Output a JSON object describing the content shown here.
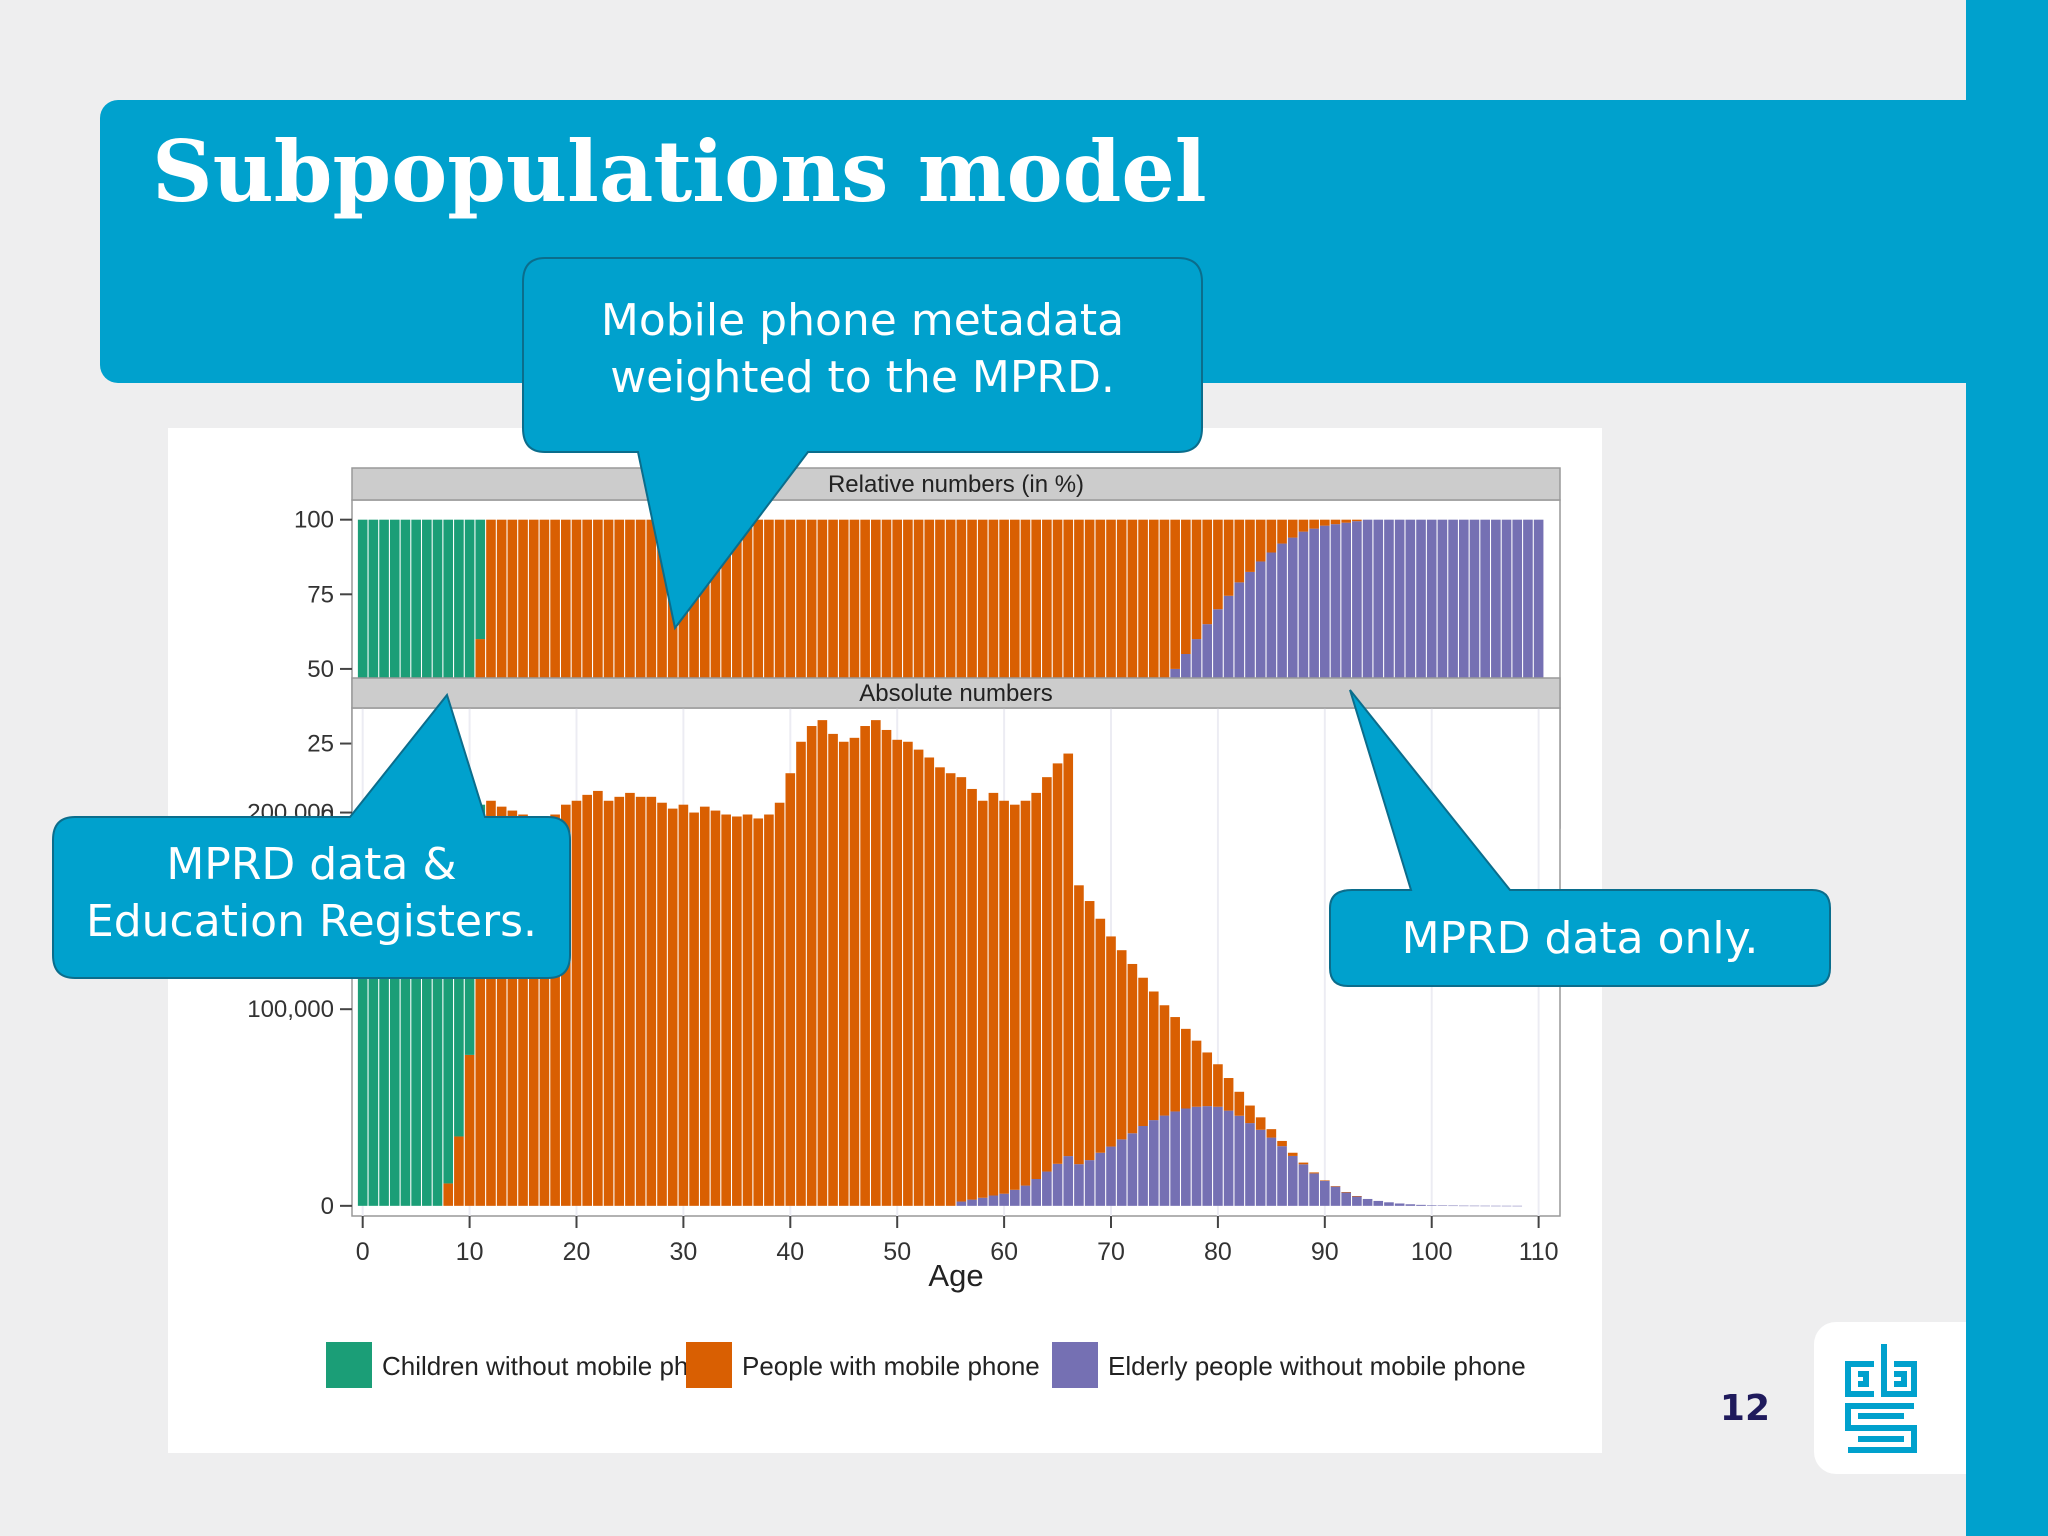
{
  "slide": {
    "title": "Subpopulations model",
    "page_number": "12",
    "colors": {
      "accent": "#00a1cd",
      "background": "#eeeeef",
      "page_number": "#1f1a5c"
    }
  },
  "callouts": {
    "metadata": "Mobile phone metadata\nweighted to the MPRD.",
    "mprd_education": "MPRD data &\nEducation Registers.",
    "mprd_only": "MPRD data only."
  },
  "logo": {
    "icon": "cbs-logo-icon",
    "text": "cbs"
  },
  "chart_data": {
    "type": "bar",
    "stacked": true,
    "xlabel": "Age",
    "x_ticks": [
      0,
      10,
      20,
      30,
      40,
      50,
      60,
      70,
      80,
      90,
      100,
      110
    ],
    "x_range": [
      -1,
      112
    ],
    "ages": [
      0,
      108
    ],
    "legend": {
      "position": "bottom",
      "entries": [
        {
          "name": "Children without mobile phone",
          "color": "#1b9e77"
        },
        {
          "name": "People with mobile phone",
          "color": "#d95f02"
        },
        {
          "name": "Elderly people without mobile phone",
          "color": "#7570b3"
        }
      ]
    },
    "panels": [
      {
        "facet_label": "Relative numbers (in %)",
        "y_ticks": [
          0,
          25,
          50,
          75,
          100
        ],
        "y_tick_labels": [
          "0",
          "25",
          "50",
          "75",
          "100"
        ],
        "ylim": [
          0,
          100
        ],
        "children_pct": [
          100,
          100,
          100,
          100,
          100,
          100,
          100,
          100,
          94,
          82,
          62,
          40,
          0
        ],
        "elderly_pct_by_age": {
          "56": 1,
          "58": 2,
          "60": 3,
          "62": 5,
          "64": 8,
          "66": 11,
          "68": 15,
          "70": 22,
          "72": 30,
          "74": 40,
          "76": 50,
          "78": 60,
          "80": 70,
          "82": 79,
          "84": 86,
          "86": 92,
          "88": 96,
          "90": 98,
          "92": 99,
          "94": 100
        },
        "max_age": 110
      },
      {
        "facet_label": "Absolute numbers",
        "y_ticks": [
          0,
          100000,
          200000
        ],
        "y_tick_labels": [
          "0",
          "100,000",
          "200,000"
        ],
        "ylim": [
          0,
          248000
        ],
        "totals": [
          177000,
          180000,
          184000,
          186000,
          186000,
          184000,
          185000,
          186000,
          190000,
          196000,
          202000,
          204000,
          206000,
          203000,
          201000,
          199000,
          198000,
          196000,
          199000,
          204000,
          206000,
          209000,
          211000,
          206000,
          208000,
          210000,
          208000,
          208000,
          205000,
          202000,
          204000,
          200000,
          203000,
          201000,
          199000,
          198000,
          199000,
          197000,
          199000,
          205000,
          220000,
          236000,
          244000,
          247000,
          240000,
          236000,
          238000,
          244000,
          247000,
          242000,
          237000,
          236000,
          232000,
          228000,
          223000,
          220000,
          218000,
          212000,
          206000,
          210000,
          206000,
          204000,
          206000,
          210000,
          218000,
          225000,
          230000,
          163000,
          155000,
          146000,
          137000,
          130000,
          123000,
          116000,
          109000,
          102000,
          96000,
          90000,
          84000,
          78000,
          72000,
          65000,
          58000,
          51000,
          45000,
          39000,
          33000,
          27000,
          22000,
          17000,
          13000,
          10000,
          7000,
          5000,
          3500,
          2500,
          1800,
          1200,
          800,
          500,
          300,
          200,
          150,
          100,
          80,
          60,
          40,
          30,
          20
        ],
        "max_age": 108
      }
    ]
  }
}
